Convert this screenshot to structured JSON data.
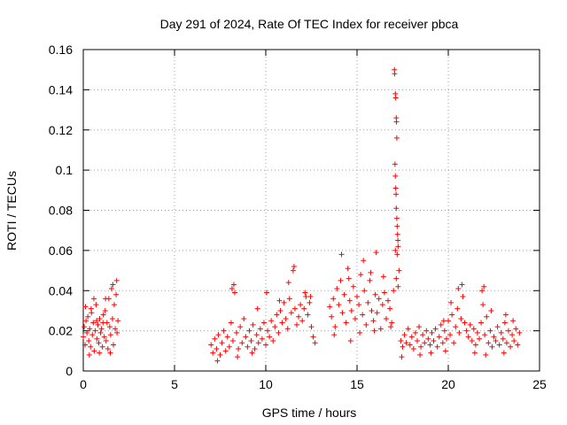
{
  "chart_data": {
    "type": "scatter",
    "title": "Day 291 of 2024, Rate Of TEC Index for receiver pbca",
    "xlabel": "GPS time / hours",
    "ylabel": "ROTI / TECUs",
    "xlim": [
      0,
      25
    ],
    "ylim": [
      0,
      0.16
    ],
    "grid": true,
    "marker": "+",
    "color": "#ff0000",
    "x_ticks": [
      0,
      5,
      10,
      15,
      20,
      25
    ],
    "x_tick_labels": [
      "0",
      "5",
      "10",
      "15",
      "20",
      "25"
    ],
    "y_ticks": [
      0,
      0.02,
      0.04,
      0.06,
      0.08,
      0.1,
      0.12,
      0.14,
      0.16
    ],
    "y_tick_labels": [
      "0",
      "0.02",
      "0.04",
      "0.06",
      "0.08",
      "0.1",
      "0.12",
      "0.14",
      "0.16"
    ],
    "series": [
      {
        "name": "ROTI",
        "points": [
          [
            0.0,
            0.017
          ],
          [
            0.05,
            0.022
          ],
          [
            0.1,
            0.013
          ],
          [
            0.15,
            0.025
          ],
          [
            0.2,
            0.019
          ],
          [
            0.25,
            0.027
          ],
          [
            0.3,
            0.015
          ],
          [
            0.35,
            0.021
          ],
          [
            0.4,
            0.012
          ],
          [
            0.45,
            0.029
          ],
          [
            0.5,
            0.018
          ],
          [
            0.55,
            0.024
          ],
          [
            0.6,
            0.01
          ],
          [
            0.65,
            0.02
          ],
          [
            0.7,
            0.033
          ],
          [
            0.75,
            0.016
          ],
          [
            0.8,
            0.023
          ],
          [
            0.85,
            0.014
          ],
          [
            0.9,
            0.026
          ],
          [
            0.95,
            0.019
          ],
          [
            1.0,
            0.021
          ],
          [
            1.05,
            0.012
          ],
          [
            1.1,
            0.028
          ],
          [
            1.15,
            0.017
          ],
          [
            1.2,
            0.03
          ],
          [
            1.25,
            0.015
          ],
          [
            1.3,
            0.024
          ],
          [
            1.35,
            0.011
          ],
          [
            1.4,
            0.036
          ],
          [
            1.45,
            0.022
          ],
          [
            1.5,
            0.018
          ],
          [
            1.55,
            0.041
          ],
          [
            1.6,
            0.026
          ],
          [
            1.65,
            0.013
          ],
          [
            1.7,
            0.033
          ],
          [
            1.75,
            0.021
          ],
          [
            1.8,
            0.038
          ],
          [
            1.85,
            0.019
          ],
          [
            1.9,
            0.025
          ],
          [
            0.12,
            0.032
          ],
          [
            0.33,
            0.008
          ],
          [
            0.58,
            0.036
          ],
          [
            0.88,
            0.009
          ],
          [
            1.22,
            0.036
          ],
          [
            1.48,
            0.009
          ],
          [
            1.62,
            0.043
          ],
          [
            1.83,
            0.045
          ],
          [
            0.43,
            0.031
          ],
          [
            0.73,
            0.025
          ],
          [
            1.08,
            0.024
          ],
          [
            7.0,
            0.013
          ],
          [
            7.1,
            0.009
          ],
          [
            7.2,
            0.016
          ],
          [
            7.3,
            0.011
          ],
          [
            7.4,
            0.018
          ],
          [
            7.5,
            0.008
          ],
          [
            7.6,
            0.014
          ],
          [
            7.7,
            0.02
          ],
          [
            7.8,
            0.01
          ],
          [
            7.9,
            0.017
          ],
          [
            8.0,
            0.012
          ],
          [
            8.1,
            0.024
          ],
          [
            8.2,
            0.015
          ],
          [
            8.3,
            0.039
          ],
          [
            8.4,
            0.019
          ],
          [
            8.5,
            0.011
          ],
          [
            8.6,
            0.022
          ],
          [
            8.7,
            0.014
          ],
          [
            8.8,
            0.026
          ],
          [
            8.9,
            0.017
          ],
          [
            9.0,
            0.012
          ],
          [
            9.1,
            0.02
          ],
          [
            9.2,
            0.015
          ],
          [
            9.3,
            0.023
          ],
          [
            9.4,
            0.011
          ],
          [
            9.5,
            0.018
          ],
          [
            9.6,
            0.014
          ],
          [
            9.7,
            0.021
          ],
          [
            9.8,
            0.016
          ],
          [
            9.9,
            0.024
          ],
          [
            10.0,
            0.013
          ],
          [
            10.1,
            0.02
          ],
          [
            10.2,
            0.017
          ],
          [
            10.3,
            0.025
          ],
          [
            10.4,
            0.015
          ],
          [
            10.5,
            0.022
          ],
          [
            10.6,
            0.028
          ],
          [
            10.7,
            0.019
          ],
          [
            10.8,
            0.03
          ],
          [
            10.9,
            0.024
          ],
          [
            11.0,
            0.034
          ],
          [
            11.1,
            0.026
          ],
          [
            11.2,
            0.021
          ],
          [
            11.3,
            0.036
          ],
          [
            11.4,
            0.029
          ],
          [
            11.5,
            0.05
          ],
          [
            11.6,
            0.031
          ],
          [
            11.7,
            0.023
          ],
          [
            11.8,
            0.027
          ],
          [
            11.9,
            0.033
          ],
          [
            12.0,
            0.025
          ],
          [
            12.1,
            0.031
          ],
          [
            12.2,
            0.037
          ],
          [
            12.3,
            0.028
          ],
          [
            12.4,
            0.034
          ],
          [
            12.5,
            0.022
          ],
          [
            12.6,
            0.017
          ],
          [
            12.7,
            0.014
          ],
          [
            8.25,
            0.043
          ],
          [
            8.15,
            0.041
          ],
          [
            9.55,
            0.031
          ],
          [
            10.05,
            0.039
          ],
          [
            11.55,
            0.052
          ],
          [
            11.25,
            0.044
          ],
          [
            12.15,
            0.039
          ],
          [
            7.35,
            0.005
          ],
          [
            8.45,
            0.007
          ],
          [
            9.25,
            0.009
          ],
          [
            12.45,
            0.037
          ],
          [
            10.75,
            0.035
          ],
          [
            13.5,
            0.032
          ],
          [
            13.6,
            0.027
          ],
          [
            13.7,
            0.036
          ],
          [
            13.8,
            0.022
          ],
          [
            13.9,
            0.041
          ],
          [
            14.0,
            0.033
          ],
          [
            14.1,
            0.045
          ],
          [
            14.2,
            0.029
          ],
          [
            14.3,
            0.038
          ],
          [
            14.4,
            0.024
          ],
          [
            14.5,
            0.051
          ],
          [
            14.6,
            0.035
          ],
          [
            14.7,
            0.03
          ],
          [
            14.8,
            0.042
          ],
          [
            14.9,
            0.026
          ],
          [
            15.0,
            0.037
          ],
          [
            15.1,
            0.033
          ],
          [
            15.2,
            0.048
          ],
          [
            15.3,
            0.028
          ],
          [
            15.4,
            0.04
          ],
          [
            15.5,
            0.023
          ],
          [
            15.6,
            0.034
          ],
          [
            15.7,
            0.045
          ],
          [
            15.8,
            0.03
          ],
          [
            15.9,
            0.025
          ],
          [
            16.0,
            0.038
          ],
          [
            16.1,
            0.029
          ],
          [
            16.2,
            0.036
          ],
          [
            16.3,
            0.021
          ],
          [
            16.4,
            0.033
          ],
          [
            16.5,
            0.039
          ],
          [
            16.6,
            0.026
          ],
          [
            16.7,
            0.035
          ],
          [
            16.8,
            0.031
          ],
          [
            16.9,
            0.024
          ],
          [
            17.0,
            0.04
          ],
          [
            14.15,
            0.058
          ],
          [
            14.55,
            0.046
          ],
          [
            15.35,
            0.055
          ],
          [
            15.75,
            0.049
          ],
          [
            16.05,
            0.059
          ],
          [
            16.45,
            0.047
          ],
          [
            13.75,
            0.018
          ],
          [
            14.65,
            0.015
          ],
          [
            15.15,
            0.019
          ],
          [
            15.95,
            0.02
          ],
          [
            16.85,
            0.022
          ],
          [
            17.05,
            0.15
          ],
          [
            17.06,
            0.148
          ],
          [
            17.1,
            0.138
          ],
          [
            17.12,
            0.136
          ],
          [
            17.15,
            0.126
          ],
          [
            17.16,
            0.124
          ],
          [
            17.18,
            0.116
          ],
          [
            17.08,
            0.103
          ],
          [
            17.1,
            0.097
          ],
          [
            17.12,
            0.091
          ],
          [
            17.14,
            0.088
          ],
          [
            17.15,
            0.081
          ],
          [
            17.18,
            0.076
          ],
          [
            17.2,
            0.072
          ],
          [
            17.22,
            0.068
          ],
          [
            17.24,
            0.065
          ],
          [
            17.25,
            0.062
          ],
          [
            17.1,
            0.06
          ],
          [
            17.2,
            0.058
          ],
          [
            17.3,
            0.05
          ],
          [
            17.15,
            0.046
          ],
          [
            17.25,
            0.042
          ],
          [
            17.4,
            0.015
          ],
          [
            17.5,
            0.012
          ],
          [
            17.6,
            0.018
          ],
          [
            17.7,
            0.014
          ],
          [
            17.8,
            0.021
          ],
          [
            17.9,
            0.013
          ],
          [
            18.0,
            0.017
          ],
          [
            18.1,
            0.011
          ],
          [
            18.2,
            0.019
          ],
          [
            18.3,
            0.015
          ],
          [
            18.4,
            0.022
          ],
          [
            18.5,
            0.012
          ],
          [
            18.6,
            0.018
          ],
          [
            18.7,
            0.014
          ],
          [
            18.8,
            0.02
          ],
          [
            18.9,
            0.016
          ],
          [
            19.0,
            0.013
          ],
          [
            19.1,
            0.019
          ],
          [
            19.2,
            0.015
          ],
          [
            19.3,
            0.021
          ],
          [
            19.4,
            0.012
          ],
          [
            19.5,
            0.017
          ],
          [
            19.6,
            0.023
          ],
          [
            19.7,
            0.014
          ],
          [
            19.8,
            0.02
          ],
          [
            19.9,
            0.016
          ],
          [
            20.0,
            0.025
          ],
          [
            20.1,
            0.018
          ],
          [
            20.2,
            0.028
          ],
          [
            20.3,
            0.014
          ],
          [
            20.4,
            0.022
          ],
          [
            20.5,
            0.031
          ],
          [
            20.6,
            0.019
          ],
          [
            20.7,
            0.026
          ],
          [
            20.8,
            0.037
          ],
          [
            20.9,
            0.024
          ],
          [
            21.0,
            0.02
          ],
          [
            21.1,
            0.017
          ],
          [
            21.2,
            0.023
          ],
          [
            21.3,
            0.015
          ],
          [
            21.4,
            0.021
          ],
          [
            21.5,
            0.013
          ],
          [
            21.6,
            0.019
          ],
          [
            21.7,
            0.016
          ],
          [
            21.8,
            0.024
          ],
          [
            21.9,
            0.033
          ],
          [
            22.0,
            0.018
          ],
          [
            22.1,
            0.027
          ],
          [
            22.2,
            0.014
          ],
          [
            22.3,
            0.02
          ],
          [
            22.4,
            0.012
          ],
          [
            22.5,
            0.017
          ],
          [
            22.6,
            0.015
          ],
          [
            22.7,
            0.022
          ],
          [
            22.8,
            0.013
          ],
          [
            22.9,
            0.019
          ],
          [
            23.0,
            0.016
          ],
          [
            23.1,
            0.024
          ],
          [
            23.2,
            0.014
          ],
          [
            23.3,
            0.02
          ],
          [
            23.4,
            0.012
          ],
          [
            23.5,
            0.018
          ],
          [
            23.6,
            0.015
          ],
          [
            23.7,
            0.021
          ],
          [
            23.8,
            0.013
          ],
          [
            23.9,
            0.019
          ],
          [
            20.75,
            0.043
          ],
          [
            20.55,
            0.041
          ],
          [
            21.85,
            0.04
          ],
          [
            21.95,
            0.042
          ],
          [
            20.15,
            0.034
          ],
          [
            22.35,
            0.03
          ],
          [
            23.15,
            0.028
          ],
          [
            17.45,
            0.007
          ],
          [
            18.45,
            0.008
          ],
          [
            19.05,
            0.009
          ],
          [
            19.85,
            0.01
          ],
          [
            21.45,
            0.009
          ],
          [
            22.05,
            0.008
          ],
          [
            23.05,
            0.009
          ],
          [
            19.75,
            0.025
          ],
          [
            23.55,
            0.025
          ]
        ]
      }
    ]
  }
}
